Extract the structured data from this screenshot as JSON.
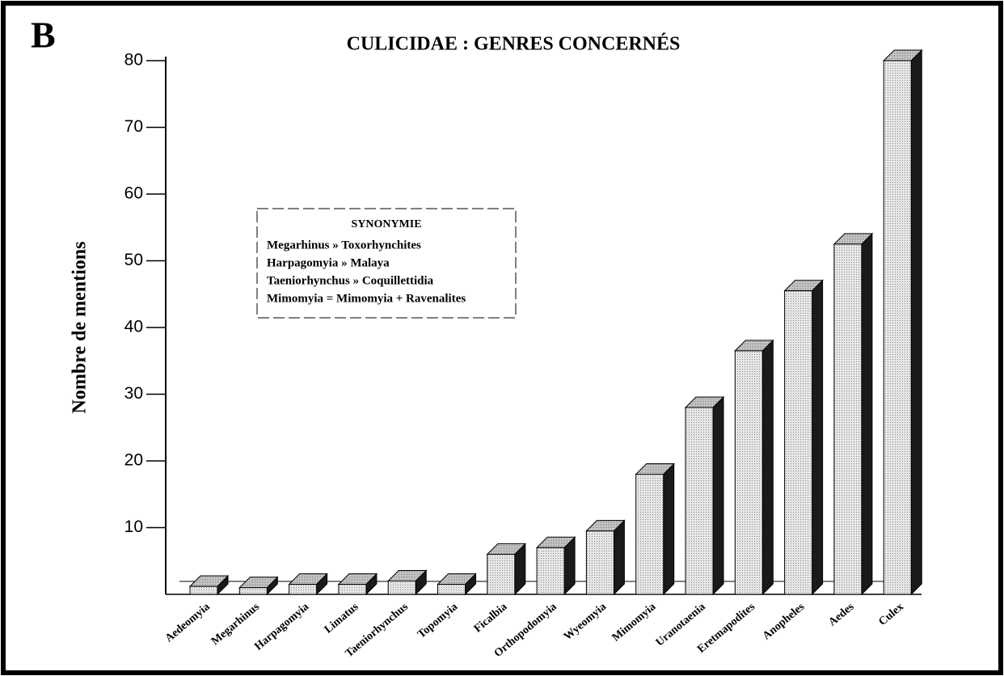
{
  "chart_data": {
    "type": "bar3d",
    "panel_letter": "B",
    "title": "CULICIDAE : GENRES CONCERNÉS",
    "y_label": "Nombre de mentions",
    "categories": [
      "Aedeomyia",
      "Megarhinus",
      "Harpagomyia",
      "Limatus",
      "Taeniorhynchus",
      "Topomyia",
      "Ficalbia",
      "Orthopodomyia",
      "Wyeomyia",
      "Mimomyia",
      "Uranotaenia",
      "Eretmapodites",
      "Anopheles",
      "Aedes",
      "Culex"
    ],
    "values": [
      1.2,
      1,
      1.5,
      1.5,
      2,
      1.5,
      6,
      7,
      9.5,
      18,
      28,
      36.5,
      45.5,
      52.5,
      80
    ],
    "color": "#d8d8d8",
    "ylim": [
      0,
      80
    ],
    "yticks": [
      10,
      20,
      30,
      40,
      50,
      60,
      70,
      80
    ],
    "legend_box": {
      "title": "SYNONYMIE",
      "lines": [
        "Megarhinus » Toxorhynchites",
        "Harpagomyia » Malaya",
        "Taeniorhynchus » Coquillettidia",
        "Mimomyia = Mimomyia + Ravenalites"
      ]
    }
  }
}
